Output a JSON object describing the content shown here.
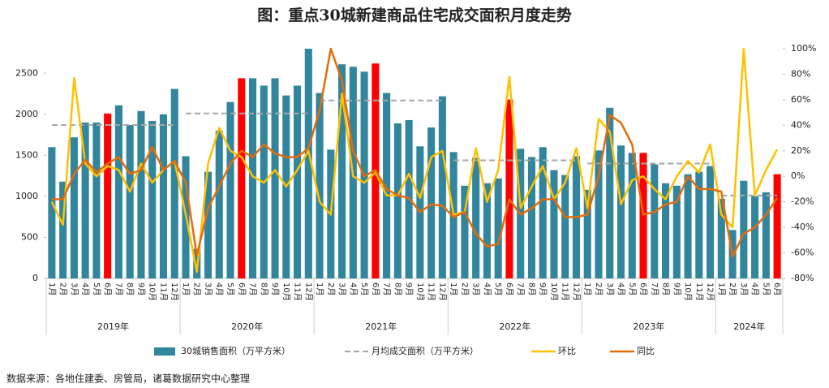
{
  "chart_data": {
    "type": "bar",
    "title": "图：重点30城新建商品住宅成交面积月度走势",
    "source": "数据来源：各地住建委、房管局，诸葛数据研究中心整理",
    "categories": [
      "1月",
      "2月",
      "3月",
      "4月",
      "5月",
      "6月",
      "7月",
      "8月",
      "9月",
      "10月",
      "11月",
      "12月",
      "1月",
      "2月",
      "3月",
      "4月",
      "5月",
      "6月",
      "7月",
      "8月",
      "9月",
      "10月",
      "11月",
      "12月",
      "1月",
      "2月",
      "3月",
      "4月",
      "5月",
      "6月",
      "7月",
      "8月",
      "9月",
      "10月",
      "11月",
      "12月",
      "1月",
      "2月",
      "3月",
      "4月",
      "5月",
      "6月",
      "7月",
      "8月",
      "9月",
      "10月",
      "11月",
      "12月",
      "1月",
      "2月",
      "3月",
      "4月",
      "5月",
      "6月",
      "7月",
      "8月",
      "9月",
      "10月",
      "11月",
      "12月",
      "1月",
      "2月",
      "3月",
      "4月",
      "5月",
      "6月"
    ],
    "groups": [
      "2019年",
      "2020年",
      "2021年",
      "2022年",
      "2023年",
      "2024年"
    ],
    "ylim": [
      0,
      2800
    ],
    "yticks": [
      0,
      500,
      1000,
      1500,
      2000,
      2500
    ],
    "y2lim": [
      -80,
      100
    ],
    "y2ticks": [
      {
        "value": -80,
        "label": "-80%"
      },
      {
        "value": -60,
        "label": "-60%"
      },
      {
        "value": -40,
        "label": "-40%"
      },
      {
        "value": -20,
        "label": "-20%"
      },
      {
        "value": 0,
        "label": "0%"
      },
      {
        "value": 20,
        "label": "20%"
      },
      {
        "value": 40,
        "label": "40%"
      },
      {
        "value": 60,
        "label": "60%"
      },
      {
        "value": 80,
        "label": "80%"
      },
      {
        "value": 100,
        "label": "100%"
      }
    ],
    "highlight": {
      "category": "6月",
      "color": "#ff0000"
    },
    "series": [
      {
        "name": "30城销售面积（万平方米）",
        "type": "bar",
        "color": "#31859c",
        "values": [
          1600,
          1180,
          1720,
          1900,
          1900,
          2010,
          2110,
          1870,
          2040,
          1920,
          2000,
          2310,
          1490,
          360,
          1300,
          1800,
          2150,
          2440,
          2440,
          2350,
          2440,
          2230,
          2350,
          2800,
          2260,
          1570,
          2610,
          2580,
          2520,
          2620,
          2260,
          1890,
          1930,
          1610,
          1840,
          2220,
          1540,
          1130,
          1470,
          1160,
          1220,
          2180,
          1580,
          1480,
          1600,
          1320,
          1260,
          1490,
          1080,
          1560,
          2080,
          1620,
          1530,
          1530,
          1390,
          1160,
          1130,
          1270,
          1300,
          1370,
          970,
          590,
          1190,
          1000,
          1050,
          1270
        ]
      },
      {
        "name": "月均成交面积（万平方米）",
        "type": "line",
        "dash": true,
        "by_group": true,
        "color": "#a6a6a6",
        "values": [
          1870,
          1870,
          1870,
          1870,
          1870,
          1870,
          1870,
          1870,
          1870,
          1870,
          1870,
          1870,
          2010,
          2010,
          2010,
          2010,
          2010,
          2010,
          2010,
          2010,
          2010,
          2010,
          2010,
          2010,
          2170,
          2170,
          2170,
          2170,
          2170,
          2170,
          2170,
          2170,
          2170,
          2170,
          2170,
          2170,
          1440,
          1440,
          1440,
          1440,
          1440,
          1440,
          1440,
          1440,
          1440,
          1440,
          1440,
          1440,
          1400,
          1400,
          1400,
          1400,
          1400,
          1400,
          1400,
          1400,
          1400,
          1400,
          1400,
          1400,
          1010,
          1010,
          1010,
          1010,
          1010,
          1010
        ]
      },
      {
        "name": "环比",
        "type": "line",
        "axis": "y2",
        "color": "#ffc000",
        "values": [
          -20,
          -38,
          77,
          10,
          0,
          8,
          5,
          -12,
          10,
          -5,
          5,
          12,
          -30,
          -75,
          10,
          38,
          20,
          15,
          0,
          -5,
          5,
          -8,
          5,
          20,
          -20,
          -30,
          65,
          0,
          -5,
          3,
          -15,
          -15,
          2,
          -17,
          15,
          20,
          -30,
          -28,
          22,
          -20,
          5,
          78,
          -25,
          -8,
          8,
          -18,
          -5,
          22,
          -25,
          45,
          35,
          -22,
          -3,
          0,
          -10,
          -18,
          0,
          12,
          3,
          25,
          -30,
          -40,
          100,
          -15,
          5,
          21
        ]
      },
      {
        "name": "同比",
        "type": "line",
        "axis": "y2",
        "color": "#e46c0a",
        "values": [
          -18,
          -18,
          2,
          13,
          3,
          10,
          15,
          2,
          5,
          23,
          5,
          12,
          -5,
          -62,
          -25,
          -8,
          10,
          20,
          15,
          25,
          18,
          15,
          15,
          22,
          52,
          100,
          75,
          20,
          0,
          5,
          -10,
          -15,
          -17,
          -28,
          -22,
          -23,
          -32,
          -28,
          -45,
          -55,
          -53,
          -18,
          -30,
          -25,
          -18,
          -18,
          -32,
          -32,
          -30,
          0,
          48,
          42,
          25,
          -30,
          -28,
          -22,
          -20,
          0,
          -10,
          -10,
          -12,
          -63,
          -45,
          -40,
          -30,
          -17
        ]
      }
    ]
  }
}
